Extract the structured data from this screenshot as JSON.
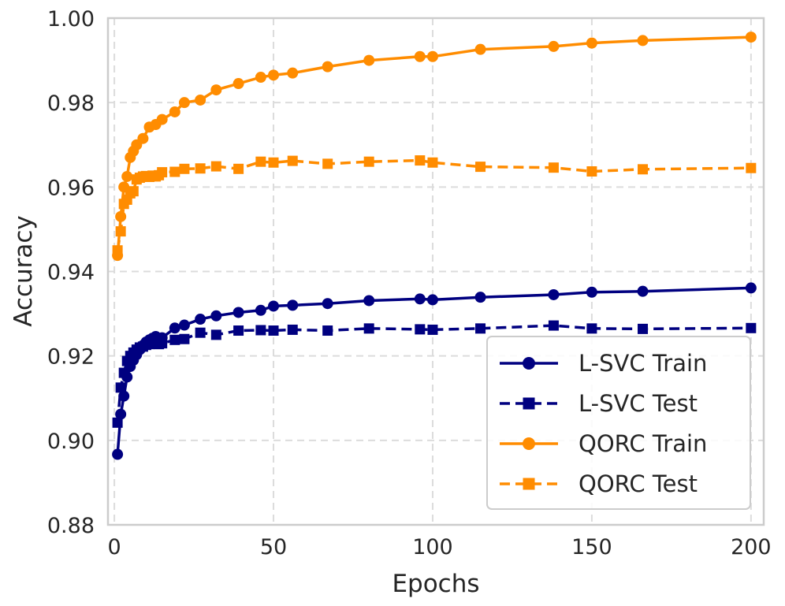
{
  "chart_data": {
    "type": "line",
    "title": "",
    "xlabel": "Epochs",
    "ylabel": "Accuracy",
    "xlim": [
      -2,
      204
    ],
    "ylim": [
      0.88,
      1.0
    ],
    "xticks": [
      0,
      50,
      100,
      150,
      200
    ],
    "yticks": [
      0.88,
      0.9,
      0.92,
      0.94,
      0.96,
      0.98,
      1.0
    ],
    "xtick_labels": [
      "0",
      "50",
      "100",
      "150",
      "200"
    ],
    "ytick_labels": [
      "0.88",
      "0.90",
      "0.92",
      "0.94",
      "0.96",
      "0.98",
      "1.00"
    ],
    "grid": true,
    "legend_position": "bottom-right",
    "series": [
      {
        "name": "L-SVC Train",
        "color": "#000080",
        "linestyle": "solid",
        "marker": "circle",
        "x": [
          1,
          2,
          3,
          4,
          5,
          6,
          7,
          8,
          9,
          10,
          11,
          12,
          13,
          14,
          15,
          19,
          22,
          27,
          32,
          39,
          46,
          50,
          56,
          67,
          80,
          96,
          100,
          115,
          138,
          150,
          166,
          200
        ],
        "y": [
          0.8967,
          0.9062,
          0.9105,
          0.915,
          0.9175,
          0.919,
          0.9203,
          0.9215,
          0.9225,
          0.9233,
          0.9238,
          0.9242,
          0.9246,
          0.924,
          0.9243,
          0.9266,
          0.9273,
          0.9287,
          0.9295,
          0.9303,
          0.9308,
          0.9318,
          0.932,
          0.9324,
          0.9331,
          0.9335,
          0.9333,
          0.9339,
          0.9345,
          0.9351,
          0.9353,
          0.9361
        ]
      },
      {
        "name": "L-SVC Test",
        "color": "#000080",
        "linestyle": "dashed",
        "marker": "square",
        "x": [
          1,
          2,
          3,
          4,
          5,
          6,
          7,
          8,
          9,
          10,
          11,
          12,
          13,
          14,
          15,
          19,
          22,
          27,
          32,
          39,
          46,
          50,
          56,
          67,
          80,
          96,
          100,
          115,
          138,
          150,
          166,
          200
        ],
        "y": [
          0.9042,
          0.9125,
          0.916,
          0.9188,
          0.92,
          0.9208,
          0.9215,
          0.922,
          0.9222,
          0.9226,
          0.9228,
          0.923,
          0.9232,
          0.9228,
          0.923,
          0.9238,
          0.924,
          0.9255,
          0.925,
          0.926,
          0.9261,
          0.926,
          0.9262,
          0.926,
          0.9265,
          0.9263,
          0.9262,
          0.9265,
          0.9272,
          0.9265,
          0.9264,
          0.9266
        ]
      },
      {
        "name": "QORC Train",
        "color": "#ff8c00",
        "linestyle": "solid",
        "marker": "circle",
        "x": [
          1,
          2,
          3,
          4,
          5,
          6,
          7,
          9,
          11,
          13,
          15,
          19,
          22,
          27,
          32,
          39,
          46,
          50,
          56,
          67,
          80,
          96,
          100,
          115,
          138,
          150,
          166,
          200
        ],
        "y": [
          0.9438,
          0.953,
          0.96,
          0.9625,
          0.967,
          0.9685,
          0.97,
          0.9715,
          0.9742,
          0.9748,
          0.976,
          0.9778,
          0.98,
          0.9806,
          0.983,
          0.9845,
          0.986,
          0.9865,
          0.987,
          0.9885,
          0.99,
          0.9909,
          0.9909,
          0.9926,
          0.9933,
          0.9941,
          0.9947,
          0.9955
        ]
      },
      {
        "name": "QORC Test",
        "color": "#ff8c00",
        "linestyle": "dashed",
        "marker": "square",
        "x": [
          1,
          2,
          3,
          4,
          5,
          6,
          7,
          8,
          9,
          10,
          11,
          12,
          13,
          14,
          15,
          19,
          22,
          27,
          32,
          39,
          46,
          50,
          56,
          67,
          80,
          96,
          100,
          115,
          138,
          150,
          166,
          200
        ],
        "y": [
          0.945,
          0.9495,
          0.956,
          0.957,
          0.9585,
          0.959,
          0.9618,
          0.9622,
          0.9625,
          0.9626,
          0.9624,
          0.9627,
          0.9625,
          0.9628,
          0.9635,
          0.9636,
          0.9643,
          0.9644,
          0.9649,
          0.9643,
          0.966,
          0.9658,
          0.9662,
          0.9655,
          0.966,
          0.9663,
          0.9658,
          0.9648,
          0.9646,
          0.9637,
          0.9642,
          0.9645
        ]
      }
    ]
  }
}
